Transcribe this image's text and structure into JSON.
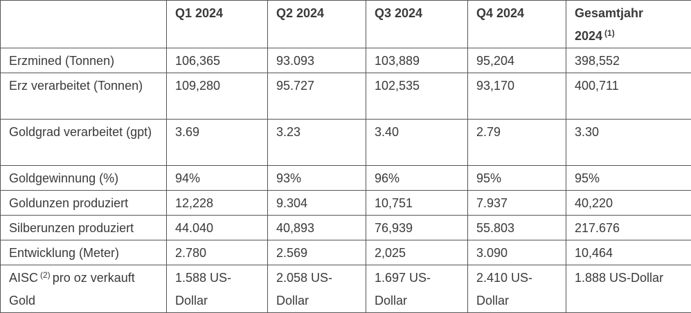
{
  "table": {
    "columns": [
      "Q1 2024",
      "Q2 2024",
      "Q3 2024",
      "Q4 2024",
      "Gesamtjahr 2024"
    ],
    "column_note": "(1)",
    "rows": [
      {
        "label": "Erzmined (Tonnen)",
        "values": [
          "106,365",
          "93.093",
          "103,889",
          "95,204",
          "398,552"
        ]
      },
      {
        "label": "Erz verarbeitet (Tonnen)",
        "values": [
          "109,280",
          "95.727",
          "102,535",
          "93,170",
          "400,711"
        ]
      },
      {
        "label": "Goldgrad verarbeitet (gpt)",
        "values": [
          "3.69",
          "3.23",
          "3.40",
          "2.79",
          "3.30"
        ]
      },
      {
        "label": "Goldgewinnung (%)",
        "values": [
          "94%",
          "93%",
          "96%",
          "95%",
          "95%"
        ]
      },
      {
        "label": "Goldunzen produziert",
        "values": [
          "12,228",
          "9.304",
          "10,751",
          "7.937",
          "40,220"
        ]
      },
      {
        "label": "Silberunzen produziert",
        "values": [
          "44.040",
          "40,893",
          "76,939",
          "55.803",
          "217.676"
        ]
      },
      {
        "label": "Entwicklung (Meter)",
        "values": [
          "2.780",
          "2.569",
          "2,025",
          "3.090",
          "10,464"
        ]
      },
      {
        "label": "AISC",
        "label_note": "(2)",
        "label_rest": "pro oz verkauft Gold",
        "values": [
          "1.588 US-Dollar",
          "2.058 US-Dollar",
          "1.697 US-Dollar",
          "2.410 US-Dollar",
          "1.888 US-Dollar"
        ]
      }
    ]
  }
}
